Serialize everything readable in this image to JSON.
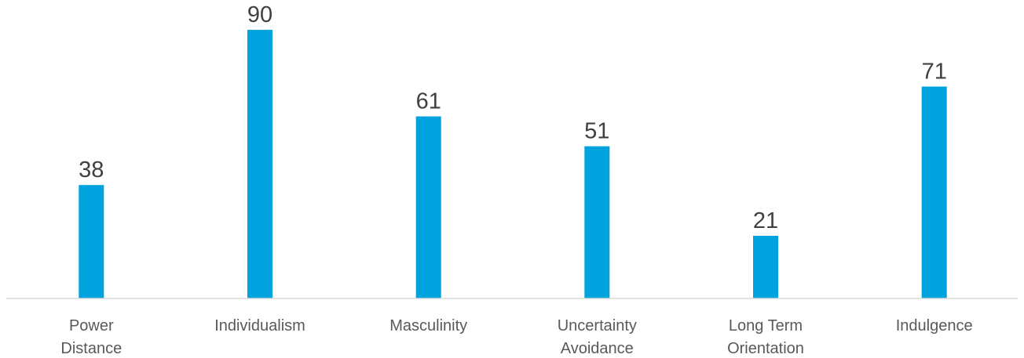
{
  "chart_data": {
    "type": "bar",
    "title": "",
    "xlabel": "",
    "ylabel": "",
    "ylim": [
      0,
      100
    ],
    "grid": false,
    "legend": "none",
    "bar_color": "#00A3DD",
    "axis_color": "#D9D9D9",
    "categories": [
      [
        "Power",
        "Distance"
      ],
      [
        "Individualism"
      ],
      [
        "Masculinity"
      ],
      [
        "Uncertainty",
        "Avoidance"
      ],
      [
        "Long Term",
        "Orientation"
      ],
      [
        "Indulgence"
      ]
    ],
    "values": [
      38,
      90,
      61,
      51,
      21,
      71
    ]
  }
}
